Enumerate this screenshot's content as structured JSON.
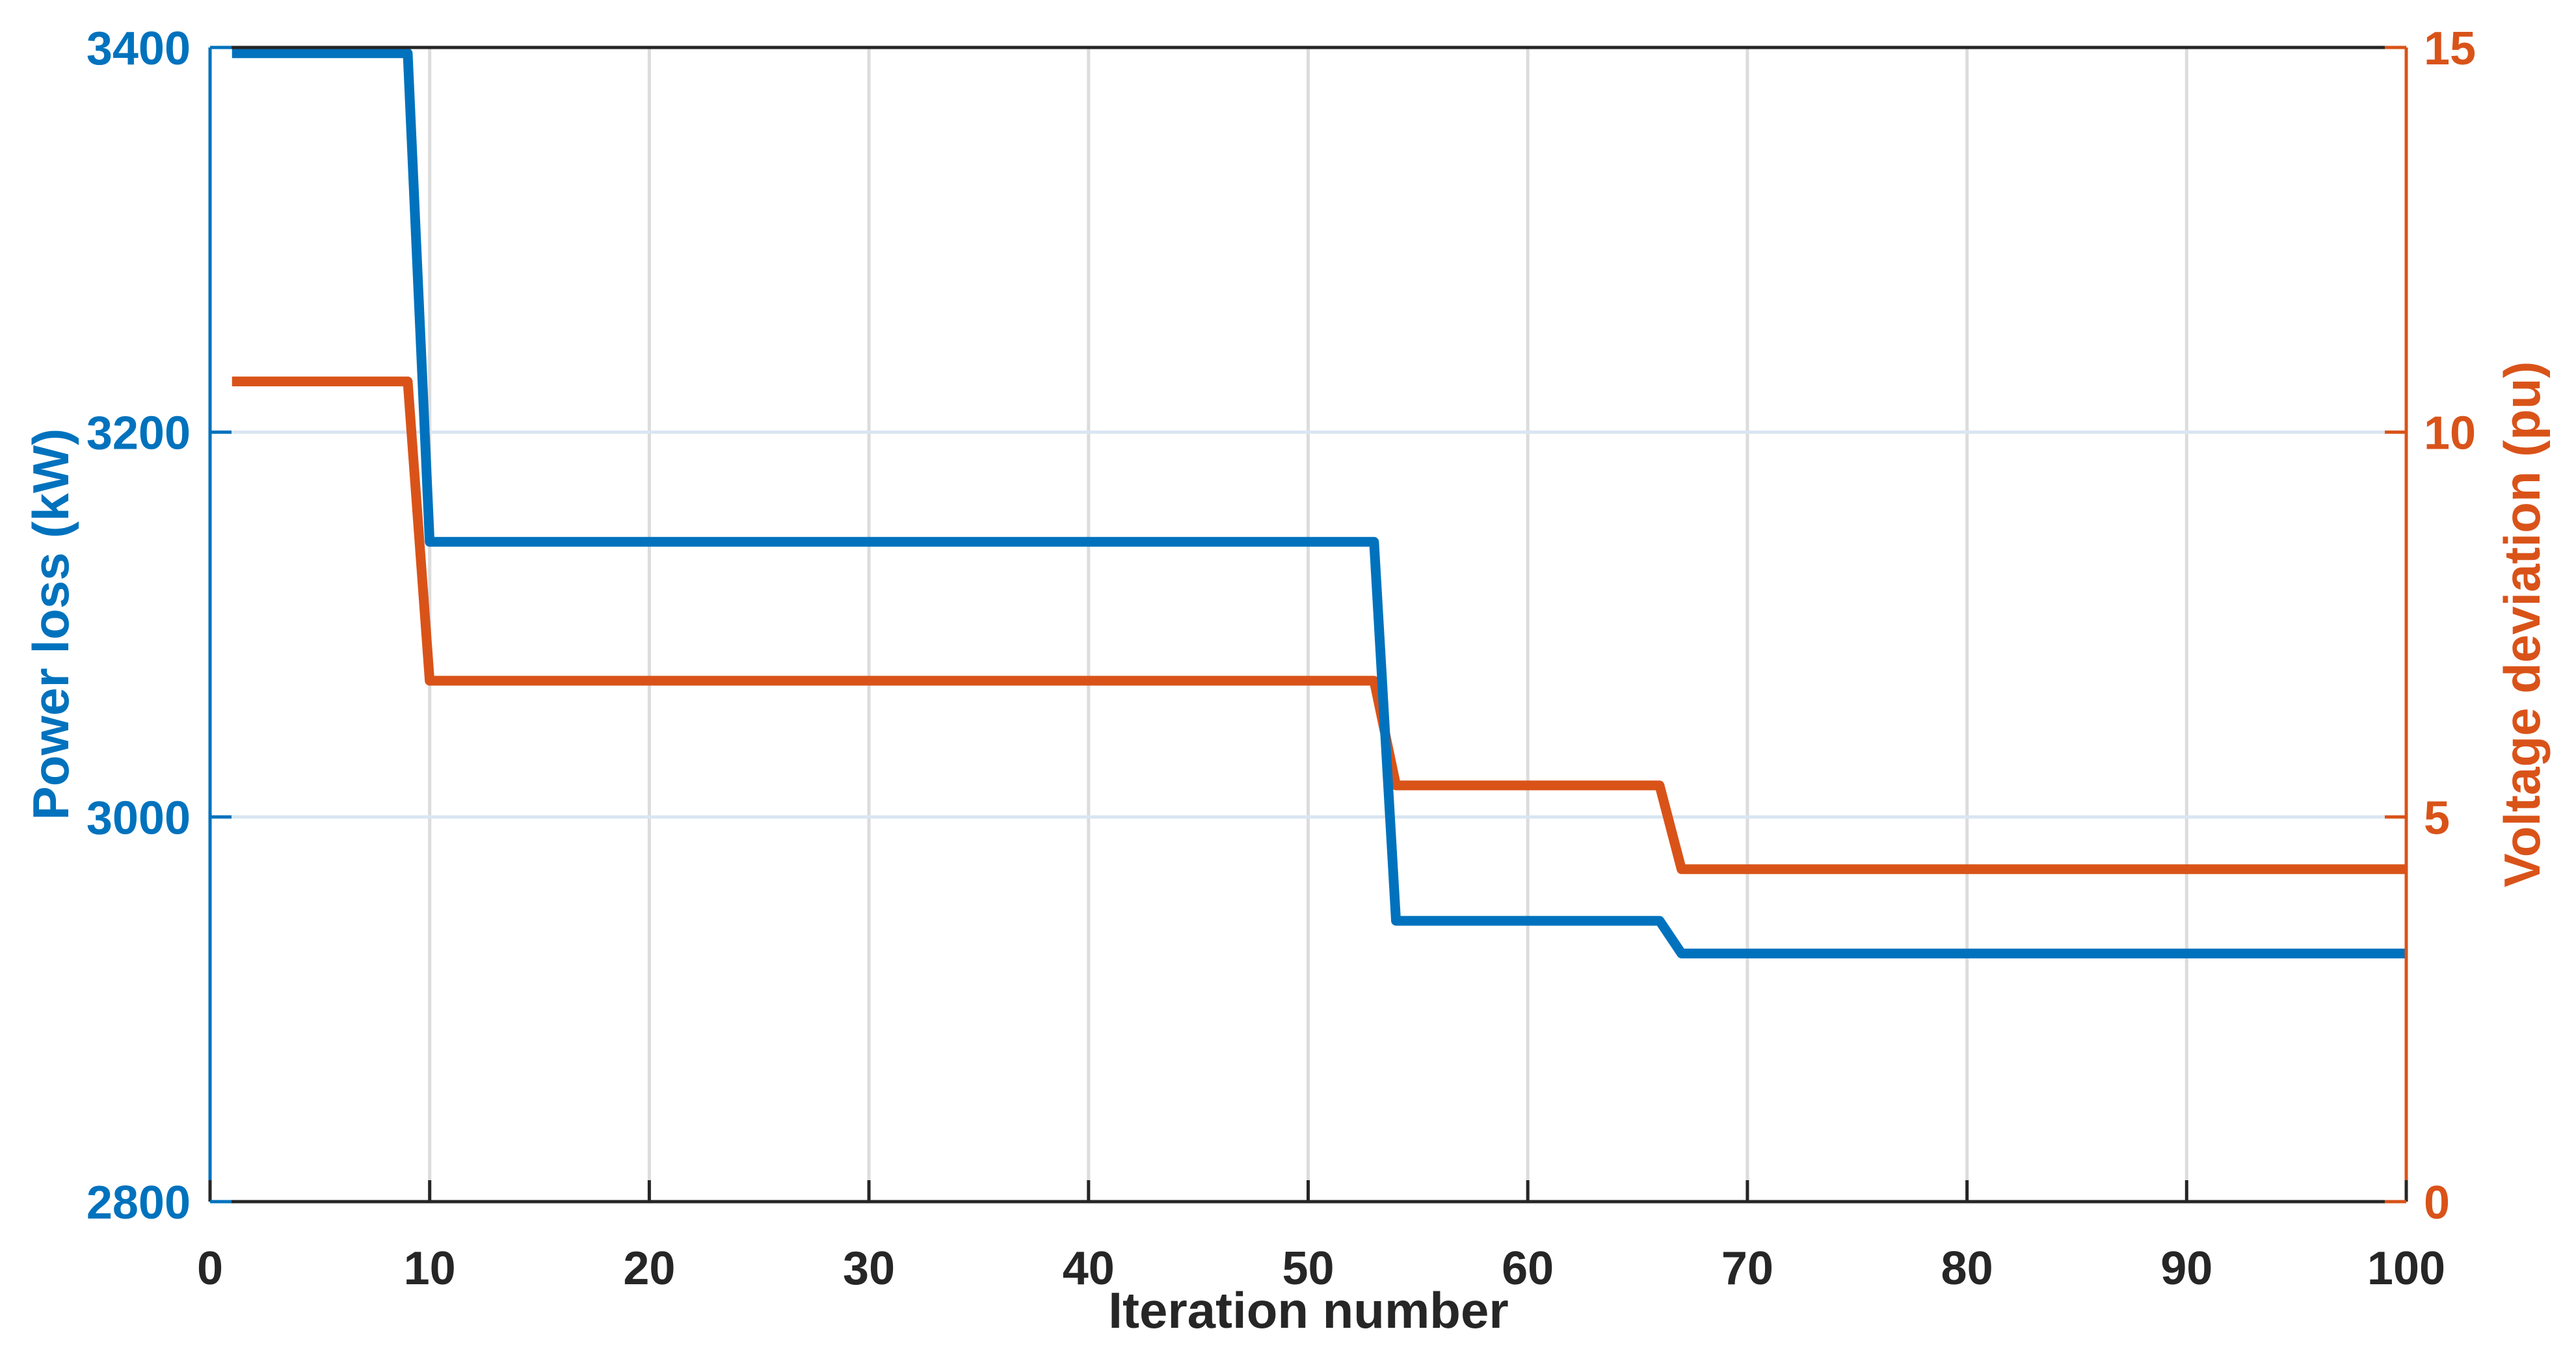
{
  "colors": {
    "left_accent": "#0072BD",
    "right_accent": "#D95319",
    "text": "#262626",
    "grid_vertical": "#dcdcdc",
    "grid_horizontal": "#d9e6f2"
  },
  "chart_data": {
    "type": "line",
    "title": "",
    "xlabel": "Iteration number",
    "xlim": [
      0,
      100
    ],
    "x_ticks": [
      0,
      10,
      20,
      30,
      40,
      50,
      60,
      70,
      80,
      90,
      100
    ],
    "grid": true,
    "legend": "none",
    "left_axis": {
      "label": "Power loss (kW)",
      "color": "#0072BD",
      "ylim": [
        2800,
        3400
      ],
      "ticks": [
        2800,
        3000,
        3200,
        3400
      ]
    },
    "right_axis": {
      "label": "Voltage deviation (pu)",
      "color": "#D95319",
      "ylim": [
        0,
        15
      ],
      "ticks": [
        0,
        5,
        10,
        15
      ]
    },
    "series": [
      {
        "name": "Voltage deviation",
        "axis": "right",
        "color": "#D95319",
        "x": [
          1,
          9,
          10,
          53,
          54,
          66,
          67,
          100
        ],
        "y": [
          10.66,
          10.66,
          6.77,
          6.77,
          5.41,
          5.41,
          4.32,
          4.32
        ]
      },
      {
        "name": "Power loss",
        "axis": "left",
        "color": "#0072BD",
        "x": [
          1,
          9,
          10,
          53,
          54,
          66,
          67,
          100
        ],
        "y": [
          3397,
          3397,
          3143,
          3143,
          2946,
          2946,
          2929,
          2929
        ]
      }
    ]
  }
}
